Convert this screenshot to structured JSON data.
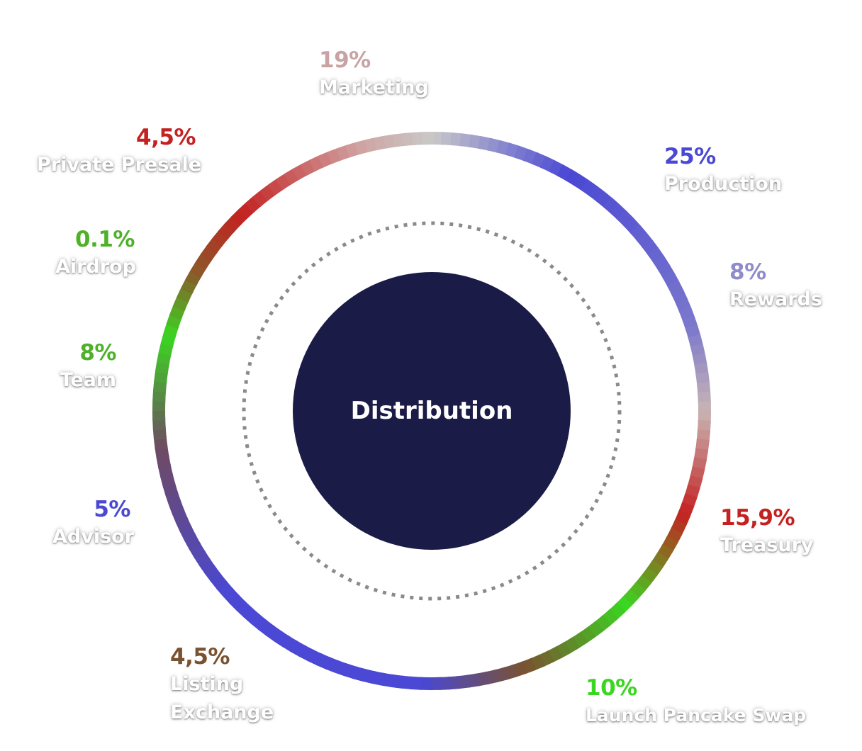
{
  "chart_data": {
    "type": "pie",
    "title": "Distribution",
    "slices": [
      {
        "label": "Marketing",
        "value_label": "19%",
        "value": 19,
        "color": "#c9a3a3"
      },
      {
        "label": "Production",
        "value_label": "25%",
        "value": 25,
        "color": "#4a48d4"
      },
      {
        "label": "Rewards",
        "value_label": "8%",
        "value": 8,
        "color": "#8f8cc9"
      },
      {
        "label": "Treasury",
        "value_label": "15,9%",
        "value": 15.9,
        "color": "#c42121"
      },
      {
        "label": "Launch Pancake Swap",
        "value_label": "10%",
        "value": 10,
        "color": "#3bd621"
      },
      {
        "label": "Listing Exchange",
        "value_label": "4,5%",
        "value": 4.5,
        "color": "#7a5230"
      },
      {
        "label": "Advisor",
        "value_label": "5%",
        "value": 5,
        "color": "#4a48d4"
      },
      {
        "label": "Team",
        "value_label": "8%",
        "value": 8,
        "color": "#4fb12a"
      },
      {
        "label": "Airdrop",
        "value_label": "0.1%",
        "value": 0.1,
        "color": "#4fb12a"
      },
      {
        "label": "Private Presale",
        "value_label": "4,5%",
        "value": 4.5,
        "color": "#c42121"
      }
    ]
  }
}
